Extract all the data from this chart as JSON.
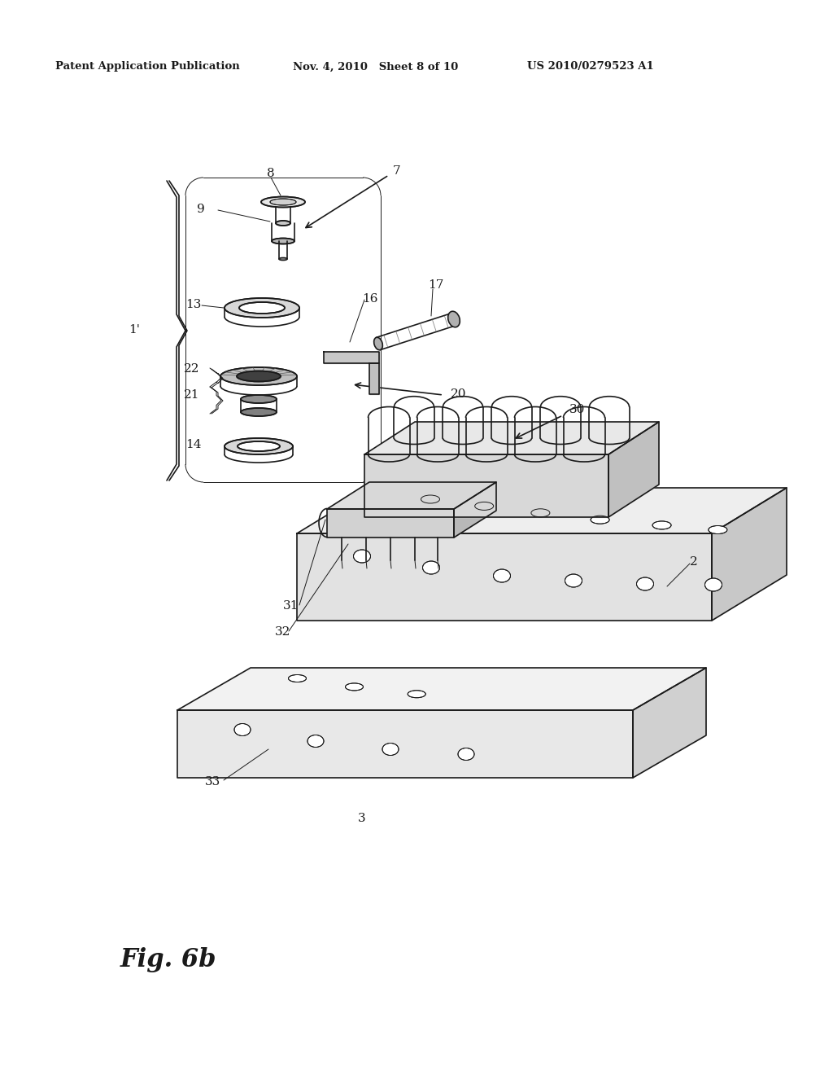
{
  "bg_color": "#ffffff",
  "header_left": "Patent Application Publication",
  "header_mid": "Nov. 4, 2010   Sheet 8 of 10",
  "header_right": "US 2010/0279523 A1",
  "figure_label": "Fig. 6b",
  "line_color": "#1a1a1a",
  "lw": 1.2,
  "tlw": 0.7
}
